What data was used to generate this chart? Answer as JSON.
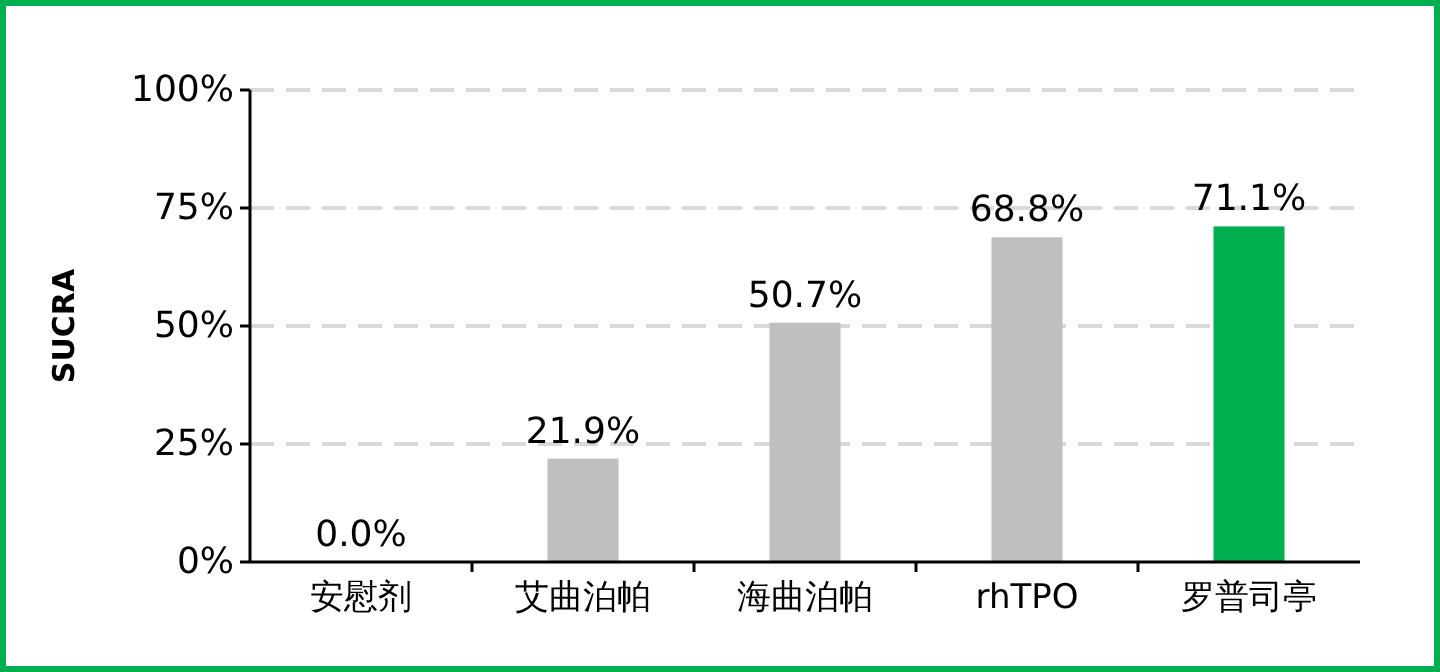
{
  "chart_data": {
    "type": "bar",
    "ylabel": "SUCRA",
    "categories": [
      "安慰剂",
      "艾曲泊帕",
      "海曲泊帕",
      "rhTPO",
      "罗普司亭"
    ],
    "values": [
      0,
      21.9,
      50.7,
      68.8,
      71.1
    ],
    "colors": [
      "#bfbfbf",
      "#bfbfbf",
      "#bfbfbf",
      "#bfbfbf",
      "#00b050"
    ],
    "value_labels": [
      "0.0%",
      "21.9%",
      "50.7%",
      "68.8%",
      "71.1%"
    ],
    "ylim": [
      0,
      100
    ],
    "yticks": [
      {
        "value": 0,
        "label": "0%"
      },
      {
        "value": 25,
        "label": "25%"
      },
      {
        "value": 50,
        "label": "50%"
      },
      {
        "value": 75,
        "label": "75%"
      },
      {
        "value": 100,
        "label": "100%"
      }
    ],
    "grid": "y"
  }
}
